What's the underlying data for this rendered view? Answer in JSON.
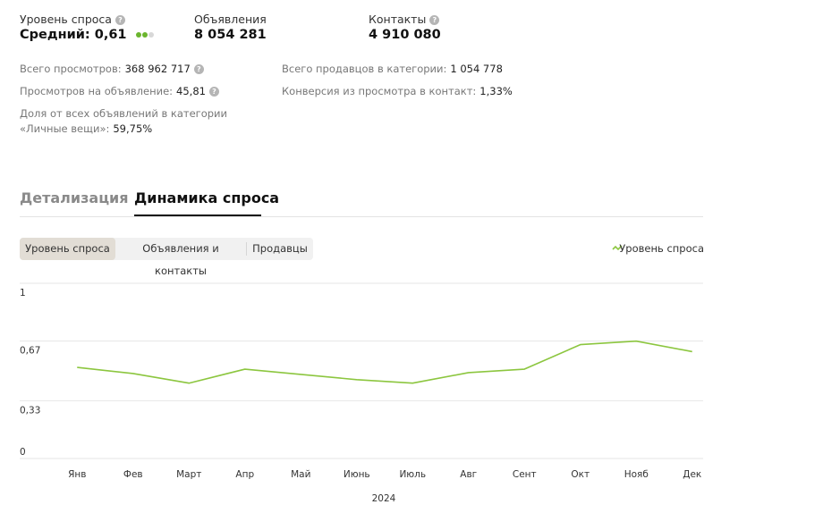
{
  "stats": [
    {
      "label": "Уровень спроса",
      "value": "Средний: 0,61"
    },
    {
      "label": "Объявления",
      "value": "8 054 281"
    },
    {
      "label": "Контакты",
      "value": "4 910 080"
    }
  ],
  "metrics": [
    {
      "label": "Всего просмотров:",
      "value": "368 962 717"
    },
    {
      "label": "Просмотров на объявление:",
      "value": "45,81"
    },
    {
      "label": "Доля от всех объявлений в категории «Личные вещи»:",
      "value": "59,75%"
    },
    {
      "label": "Всего продавцов в категории:",
      "value": "1 054 778"
    },
    {
      "label": "Конверсия из просмотра в контакт:",
      "value": "1,33%"
    }
  ],
  "tabs": [
    "Детализация",
    "Динамика спроса"
  ],
  "segments": [
    "Уровень спроса",
    "Объявления и контакты",
    "Продавцы"
  ],
  "chart_data": {
    "type": "line",
    "x_label": "2024",
    "categories": [
      "Янв",
      "Фев",
      "Март",
      "Апр",
      "Май",
      "Июнь",
      "Июль",
      "Авг",
      "Сент",
      "Окт",
      "Нояб",
      "Дек"
    ],
    "series": [
      {
        "name": "Уровень спроса",
        "color": "#8cc63f",
        "values": [
          0.52,
          0.485,
          0.43,
          0.51,
          0.48,
          0.45,
          0.43,
          0.49,
          0.51,
          0.65,
          0.67,
          0.61
        ]
      }
    ],
    "ylim": [
      0,
      1
    ],
    "yticks": [
      0,
      {
        "value": 0.33,
        "label": "0,33"
      },
      {
        "value": 0.67,
        "label": "0,67"
      },
      1
    ],
    "grid": true,
    "legend": "top-right"
  }
}
